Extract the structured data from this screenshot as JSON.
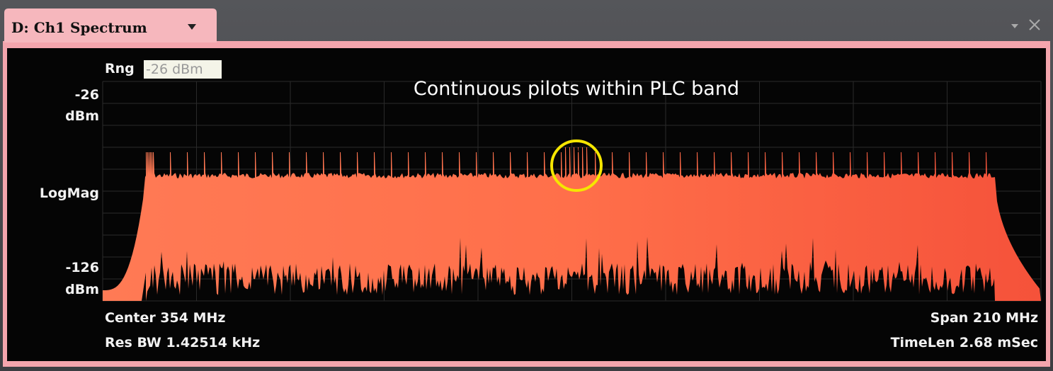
{
  "window": {
    "tab_title": "D: Ch1 Spectrum"
  },
  "display": {
    "range_label": "Rng",
    "range_value": "-26 dBm",
    "y_top": "-26",
    "y_top_unit": "dBm",
    "y_mid": "LogMag",
    "y_bottom": "-126",
    "y_bottom_unit": "dBm",
    "annotation": "Continuous pilots within PLC band",
    "center": "Center 354 MHz",
    "res_bw": "Res BW 1.42514 kHz",
    "span": "Span 210 MHz",
    "time_len": "TimeLen 2.68 mSec"
  }
}
